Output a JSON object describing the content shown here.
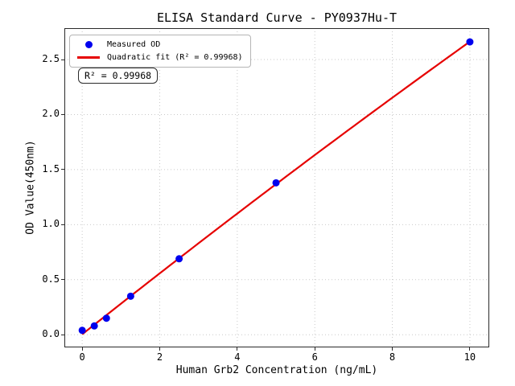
{
  "chart_data": {
    "type": "scatter",
    "title": "ELISA Standard Curve - PY0937Hu-T",
    "xlabel": "Human Grb2 Concentration (ng/mL)",
    "ylabel": "OD Value(450nm)",
    "xlim": [
      -0.46,
      10.5
    ],
    "ylim": [
      -0.115,
      2.785
    ],
    "x_ticks": [
      0,
      2,
      4,
      6,
      8,
      10
    ],
    "x_tick_labels": [
      "0",
      "2",
      "4",
      "6",
      "8",
      "10"
    ],
    "y_ticks": [
      0,
      0.5,
      1,
      1.5,
      2,
      2.5
    ],
    "y_tick_labels": [
      "0.0",
      "0.5",
      "1.0",
      "1.5",
      "2.0",
      "2.5"
    ],
    "grid": "dotted",
    "legend_position": "upper-left",
    "series": [
      {
        "name": "Measured OD",
        "type": "scatter",
        "color": "#0000ee",
        "marker_radius": 4.5,
        "points": [
          [
            0,
            0.04
          ],
          [
            0.312,
            0.08
          ],
          [
            0.625,
            0.15
          ],
          [
            1.25,
            0.35
          ],
          [
            2.5,
            0.69
          ],
          [
            5,
            1.38
          ],
          [
            10,
            2.66
          ]
        ]
      },
      {
        "name": "Quadratic fit",
        "type": "line",
        "fit": "quadratic",
        "color": "#e60000",
        "line_width": 2.2,
        "r_squared": 0.99968,
        "x_range": [
          0,
          10
        ]
      }
    ]
  },
  "legend": {
    "items": [
      {
        "label": "Measured OD",
        "marker": "dot",
        "color": "#0000ee"
      },
      {
        "label": "Quadratic fit (R² = 0.99968)",
        "marker": "line",
        "color": "#e60000"
      }
    ]
  },
  "annotation": {
    "text": "R² = 0.99968"
  },
  "colors": {
    "grid": "#c9c9c9",
    "spine": "#2a2a2a",
    "tick": "#2a2a2a",
    "text": "#000000",
    "legend_border": "#b5b5b5",
    "background": "#ffffff"
  }
}
